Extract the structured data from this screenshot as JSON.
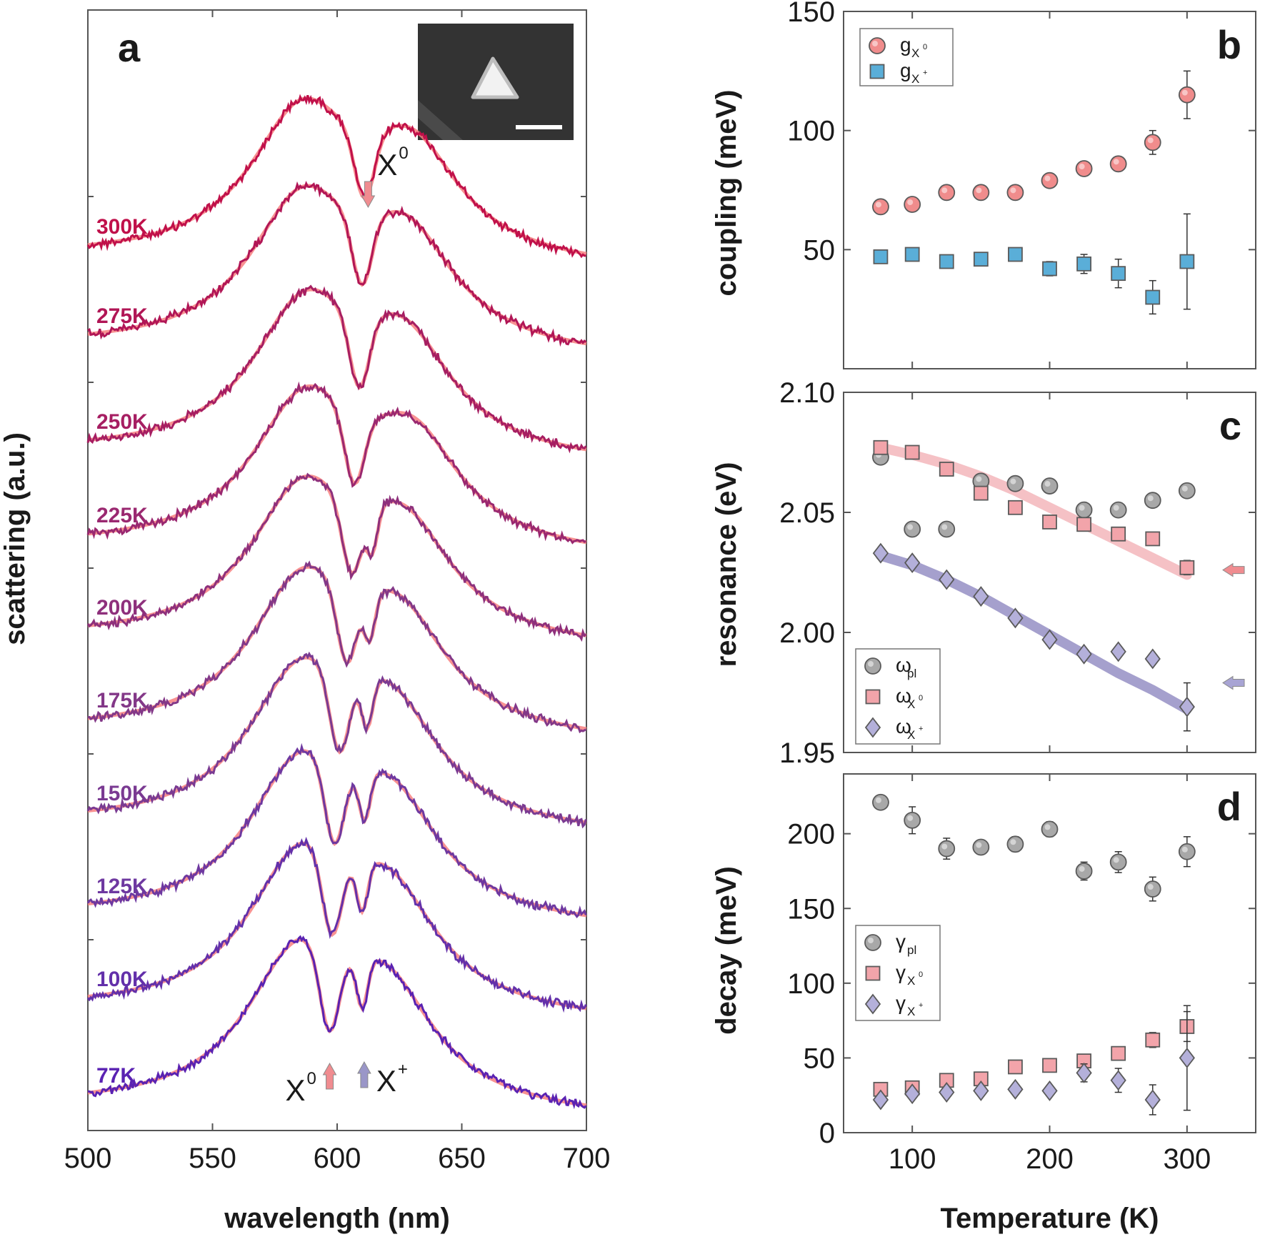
{
  "figure": {
    "panel_labels": [
      "a",
      "b",
      "c",
      "d"
    ]
  },
  "chart_data": [
    {
      "panel": "a",
      "type": "line",
      "xlabel": "wavelength (nm)",
      "ylabel": "scattering (a.u.)",
      "xlim": [
        500,
        700
      ],
      "xticks": [
        "500",
        "550",
        "600",
        "650",
        "700"
      ],
      "inset": "SEM image of triangular nanoparticle with scale bar",
      "annotations": [
        {
          "text": "X",
          "sup": "0",
          "wavelength": 611,
          "arrow": "down",
          "color": "#f08c90"
        },
        {
          "text": "X",
          "sup": "0",
          "wavelength": 597,
          "arrow": "up",
          "color": "#f08c90"
        },
        {
          "text": "X",
          "sup": "+",
          "wavelength": 610,
          "arrow": "up",
          "color": "#9a96c8"
        }
      ],
      "fit_color": "#f77f7f",
      "series": [
        {
          "name": "300K",
          "color": "#c0104a",
          "dip_x0": 611,
          "dip_xp": null,
          "peaks": [
            586,
            630
          ]
        },
        {
          "name": "275K",
          "color": "#b11656",
          "dip_x0": 610,
          "dip_xp": null,
          "peaks": [
            586,
            628
          ]
        },
        {
          "name": "250K",
          "color": "#a61e62",
          "dip_x0": 609,
          "dip_xp": null,
          "peaks": [
            587,
            627
          ]
        },
        {
          "name": "225K",
          "color": "#9a2870",
          "dip_x0": 607,
          "dip_xp": null,
          "peaks": [
            587,
            630
          ]
        },
        {
          "name": "200K",
          "color": "#8e307c",
          "dip_x0": 606,
          "dip_xp": 614,
          "peaks": [
            586,
            627
          ]
        },
        {
          "name": "175K",
          "color": "#833888",
          "dip_x0": 604,
          "dip_xp": 613,
          "peaks": [
            586,
            625
          ]
        },
        {
          "name": "150K",
          "color": "#7a3a92",
          "dip_x0": 601,
          "dip_xp": 612,
          "peaks": [
            585,
            622
          ]
        },
        {
          "name": "125K",
          "color": "#6e38a0",
          "dip_x0": 599,
          "dip_xp": 611,
          "peaks": [
            585,
            622
          ]
        },
        {
          "name": "100K",
          "color": "#6330aa",
          "dip_x0": 598,
          "dip_xp": 610,
          "peaks": [
            585,
            621
          ]
        },
        {
          "name": "77K",
          "color": "#5a22b2",
          "dip_x0": 597,
          "dip_xp": 610,
          "peaks": [
            584,
            620
          ]
        }
      ]
    },
    {
      "panel": "b",
      "type": "scatter",
      "xlabel": "",
      "ylabel": "coupling (meV)",
      "xlim": [
        50,
        350
      ],
      "ylim": [
        0,
        150
      ],
      "yticks": [
        "50",
        "100",
        "150"
      ],
      "series": [
        {
          "name": "g",
          "sub": "X",
          "sup": "0",
          "marker": "circle",
          "color": "#f08c8c",
          "x": [
            77,
            100,
            125,
            150,
            175,
            200,
            225,
            250,
            275,
            300
          ],
          "y": [
            68,
            69,
            74,
            74,
            74,
            79,
            84,
            86,
            95,
            115
          ],
          "err": [
            1,
            1,
            1,
            1,
            1,
            1,
            1,
            3,
            5,
            10
          ]
        },
        {
          "name": "g",
          "sub": "X",
          "sup": "+",
          "marker": "square",
          "color": "#5aaed8",
          "x": [
            77,
            100,
            125,
            150,
            175,
            200,
            225,
            250,
            275,
            300
          ],
          "y": [
            47,
            48,
            45,
            46,
            48,
            42,
            44,
            40,
            30,
            45
          ],
          "err": [
            1,
            1,
            2,
            2,
            2,
            3,
            4,
            6,
            7,
            20
          ]
        }
      ]
    },
    {
      "panel": "c",
      "type": "scatter",
      "xlabel": "",
      "ylabel": "resonance (eV)",
      "xlim": [
        50,
        350
      ],
      "ylim": [
        1.95,
        2.1
      ],
      "yticks": [
        "1.95",
        "2.00",
        "2.05",
        "2.10"
      ],
      "series": [
        {
          "name": "ω",
          "sub": "pl",
          "sup": "",
          "marker": "circle",
          "color": "#a8a8a8",
          "x": [
            77,
            100,
            125,
            150,
            175,
            200,
            225,
            250,
            275,
            300
          ],
          "y": [
            2.073,
            2.043,
            2.043,
            2.063,
            2.062,
            2.061,
            2.051,
            2.051,
            2.055,
            2.059
          ],
          "err": [
            0,
            0,
            0,
            0,
            0,
            0,
            0,
            0,
            0,
            0
          ]
        },
        {
          "name": "ω",
          "sub": "X",
          "sup": "0",
          "marker": "square",
          "color": "#f2a4aa",
          "x": [
            77,
            100,
            125,
            150,
            175,
            200,
            225,
            250,
            275,
            300
          ],
          "y": [
            2.077,
            2.075,
            2.068,
            2.058,
            2.052,
            2.046,
            2.045,
            2.041,
            2.039,
            2.027
          ],
          "err": [
            0,
            0,
            0,
            0,
            0,
            0,
            0,
            0,
            0,
            0.003
          ]
        },
        {
          "name": "ω",
          "sub": "X",
          "sup": "+",
          "marker": "diamond",
          "color": "#b4b0da",
          "x": [
            77,
            100,
            125,
            150,
            175,
            200,
            225,
            250,
            275,
            300
          ],
          "y": [
            2.033,
            2.029,
            2.022,
            2.015,
            2.006,
            1.997,
            1.991,
            1.992,
            1.989,
            1.969
          ],
          "err": [
            0,
            0,
            0,
            0,
            0,
            0,
            0,
            0,
            0,
            0.01
          ]
        },
        {
          "name": "fit X0",
          "type": "line",
          "color": "#f2b2b6",
          "x": [
            77,
            100,
            125,
            150,
            175,
            200,
            225,
            250,
            275,
            300
          ],
          "y": [
            2.077,
            2.074,
            2.07,
            2.065,
            2.059,
            2.052,
            2.045,
            2.038,
            2.031,
            2.024
          ]
        },
        {
          "name": "fit X+",
          "type": "line",
          "color": "#8e88c0",
          "x": [
            77,
            100,
            125,
            150,
            175,
            200,
            225,
            250,
            275,
            300
          ],
          "y": [
            2.032,
            2.028,
            2.022,
            2.015,
            2.007,
            1.999,
            1.991,
            1.983,
            1.976,
            1.968
          ]
        }
      ],
      "arrows": [
        {
          "y": 2.026,
          "color": "#f08c90"
        },
        {
          "y": 1.979,
          "color": "#a8a4d4"
        }
      ]
    },
    {
      "panel": "d",
      "type": "scatter",
      "xlabel": "Temperature (K)",
      "ylabel": "decay (meV)",
      "xlim": [
        50,
        350
      ],
      "ylim": [
        0,
        240
      ],
      "xticks": [
        "100",
        "200",
        "300"
      ],
      "yticks": [
        "0",
        "50",
        "100",
        "150",
        "200"
      ],
      "series": [
        {
          "name": "γ",
          "sub": "pl",
          "sup": "",
          "marker": "circle",
          "color": "#a8a8a8",
          "x": [
            77,
            100,
            125,
            150,
            175,
            200,
            225,
            250,
            275,
            300
          ],
          "y": [
            221,
            209,
            190,
            191,
            193,
            203,
            175,
            181,
            163,
            188
          ],
          "err": [
            3,
            9,
            7,
            4,
            5,
            5,
            6,
            7,
            8,
            10
          ]
        },
        {
          "name": "γ",
          "sub": "X",
          "sup": "0",
          "marker": "square",
          "color": "#f2a4aa",
          "x": [
            77,
            100,
            125,
            150,
            175,
            200,
            225,
            250,
            275,
            300
          ],
          "y": [
            29,
            30,
            35,
            36,
            44,
            45,
            48,
            53,
            62,
            71
          ],
          "err": [
            1,
            1,
            1,
            1,
            1,
            1,
            2,
            3,
            5,
            10
          ]
        },
        {
          "name": "γ",
          "sub": "X",
          "sup": "+",
          "marker": "diamond",
          "color": "#b4b0da",
          "x": [
            77,
            100,
            125,
            150,
            175,
            200,
            225,
            250,
            275,
            300
          ],
          "y": [
            22,
            26,
            27,
            28,
            29,
            28,
            40,
            35,
            22,
            50
          ],
          "err": [
            2,
            2,
            2,
            2,
            2,
            2,
            6,
            8,
            10,
            35
          ]
        }
      ]
    }
  ]
}
